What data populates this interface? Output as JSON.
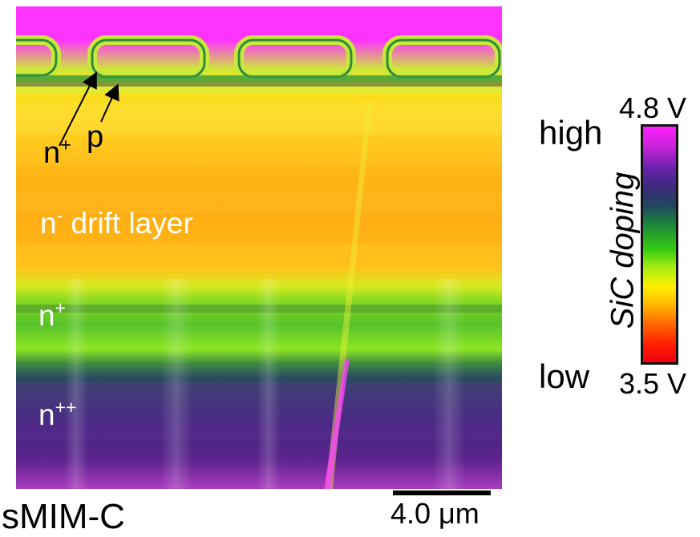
{
  "image": {
    "caption": "sMIM-C",
    "scale_bar_label": "4.0 μm",
    "annotations": {
      "n_plus_top": {
        "base": "n",
        "sup": "+"
      },
      "p": "p",
      "drift": {
        "base": "n",
        "sup": "-",
        "rest": " drift layer"
      },
      "n_plus_mid": {
        "base": "n",
        "sup": "+"
      },
      "n_plus_plus": {
        "base": "n",
        "sup": "++"
      }
    }
  },
  "colorbar": {
    "top_value": "4.8 V",
    "bottom_value": "3.5 V",
    "high_label": "high",
    "low_label": "low",
    "axis_title": "SiC doping",
    "colors": [
      "#ff22ff",
      "#6622aa",
      "#1f4a5a",
      "#1d8a3a",
      "#33cc11",
      "#ffee00",
      "#ffb300",
      "#ff6600",
      "#ee0011"
    ]
  }
}
